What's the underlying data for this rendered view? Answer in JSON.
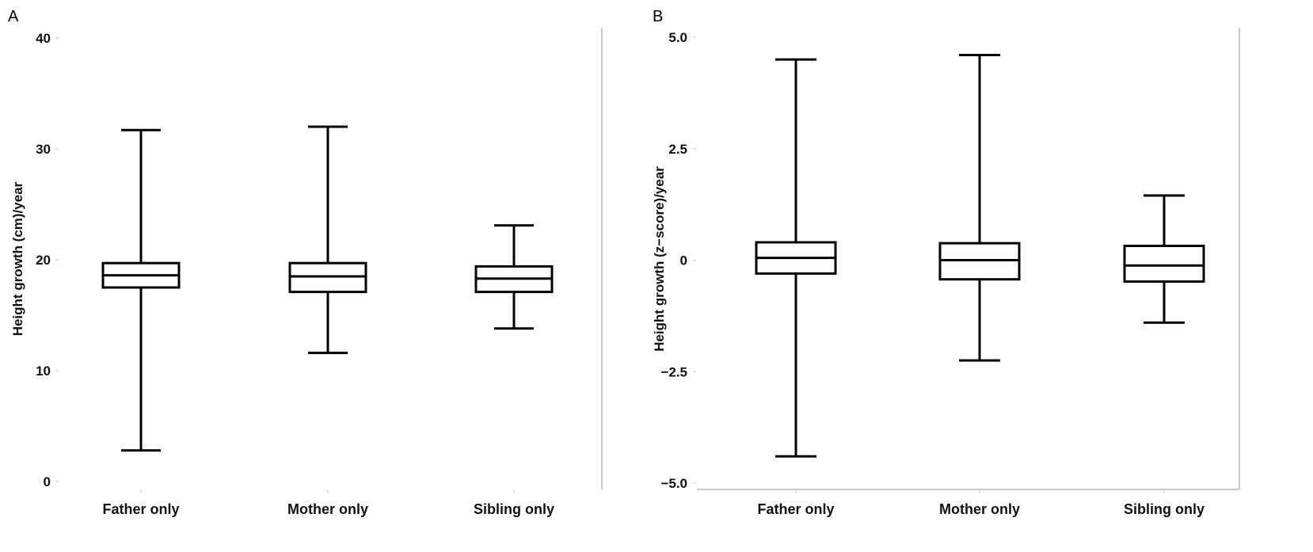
{
  "chart_data": [
    {
      "type": "box",
      "panel_label": "A",
      "title": "",
      "xlabel": "",
      "ylabel": "Height growth (cm)/year",
      "ylim": [
        0,
        40
      ],
      "yticks": [
        0,
        10,
        20,
        30,
        40
      ],
      "ytick_labels": [
        "0",
        "10",
        "20",
        "30",
        "40"
      ],
      "categories": [
        "Father only",
        "Mother only",
        "Sibling only"
      ],
      "boxes": [
        {
          "min": 2.8,
          "q1": 17.5,
          "median": 18.6,
          "q3": 19.7,
          "max": 31.7
        },
        {
          "min": 11.6,
          "q1": 17.1,
          "median": 18.5,
          "q3": 19.7,
          "max": 32.0
        },
        {
          "min": 13.8,
          "q1": 17.1,
          "median": 18.3,
          "q3": 19.4,
          "max": 23.1
        }
      ]
    },
    {
      "type": "box",
      "panel_label": "B",
      "title": "",
      "xlabel": "",
      "ylabel": "Height growth (z−score)/year",
      "ylim": [
        -5.0,
        5.0
      ],
      "yticks": [
        -5.0,
        -2.5,
        0,
        2.5,
        5.0
      ],
      "ytick_labels": [
        "−5.0",
        "−2.5",
        "0",
        "2.5",
        "5.0"
      ],
      "categories": [
        "Father only",
        "Mother only",
        "Sibling only"
      ],
      "boxes": [
        {
          "min": -4.4,
          "q1": -0.3,
          "median": 0.05,
          "q3": 0.4,
          "max": 4.5
        },
        {
          "min": -2.25,
          "q1": -0.43,
          "median": 0.0,
          "q3": 0.38,
          "max": 4.6
        },
        {
          "min": -1.4,
          "q1": -0.48,
          "median": -0.12,
          "q3": 0.32,
          "max": 1.45
        }
      ]
    }
  ]
}
